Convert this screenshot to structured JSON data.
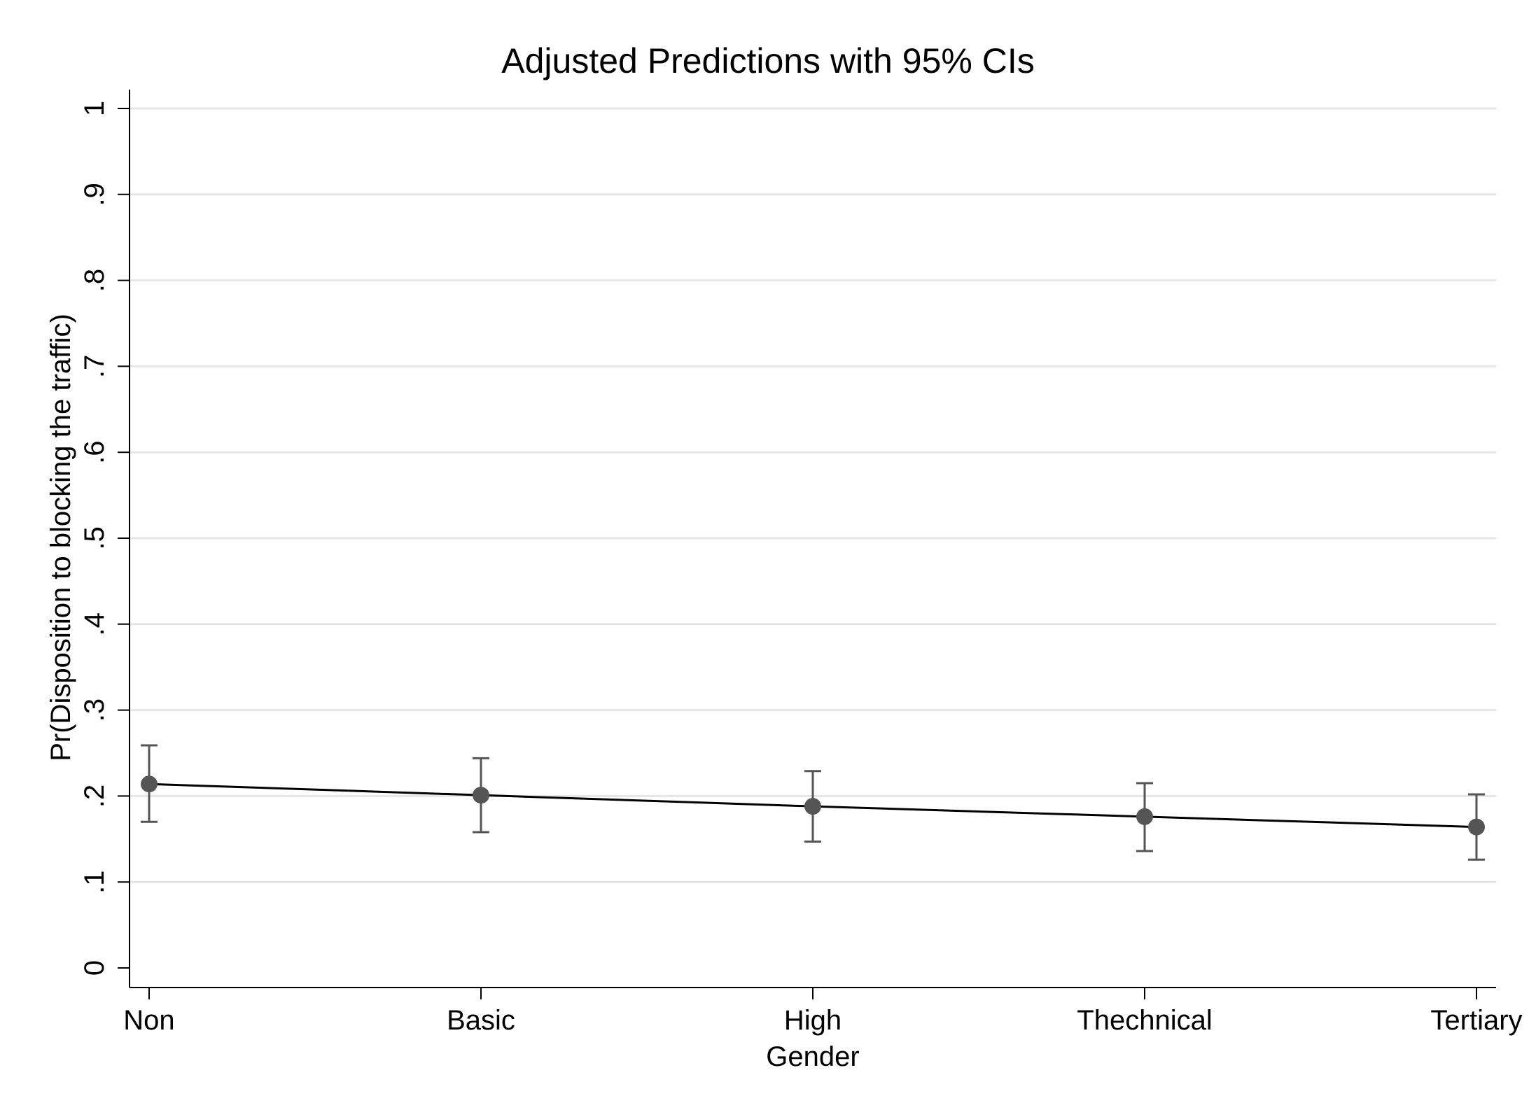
{
  "chart_data": {
    "type": "line",
    "title": "Adjusted Predictions with 95% CIs",
    "xlabel": "Gender",
    "ylabel": "Pr(Disposition to blocking the traffic)",
    "categories": [
      "Non",
      "Basic",
      "High",
      "Thechnical",
      "Tertiary"
    ],
    "series": [
      {
        "values": [
          0.214,
          0.201,
          0.188,
          0.176,
          0.164
        ],
        "ci_lower": [
          0.17,
          0.158,
          0.147,
          0.136,
          0.126
        ],
        "ci_upper": [
          0.259,
          0.244,
          0.229,
          0.215,
          0.202
        ]
      }
    ],
    "ylim": [
      0,
      1
    ],
    "yticks": [
      0,
      0.1,
      0.2,
      0.3,
      0.4,
      0.5,
      0.6,
      0.7,
      0.8,
      0.9,
      1
    ],
    "ytick_labels": [
      "0",
      ".1",
      ".2",
      ".3",
      ".4",
      ".5",
      ".6",
      ".7",
      ".8",
      ".9",
      "1"
    ],
    "grid": true,
    "colors": {
      "line": "#000000",
      "marker": "#555555",
      "ci": "#555555",
      "grid": "#e6e6e6",
      "axis": "#000000"
    }
  }
}
